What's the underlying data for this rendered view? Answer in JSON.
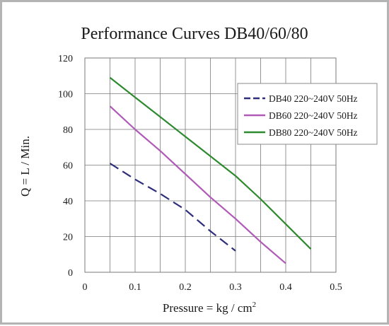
{
  "chart_data": {
    "type": "line",
    "title": "Performance  Curves  DB40/60/80",
    "xlabel": "Pressure = kg / cm",
    "xlabel_superscript": "2",
    "ylabel": "Q = L / Min.",
    "xlim": [
      0,
      0.5
    ],
    "ylim": [
      0,
      120
    ],
    "xticks": [
      0,
      0.1,
      0.2,
      0.3,
      0.4,
      0.5
    ],
    "xtick_labels": [
      "0",
      "0.1",
      "0.2",
      "0.3",
      "0.4",
      "0.5"
    ],
    "yticks": [
      0,
      20,
      40,
      60,
      80,
      100,
      120
    ],
    "ytick_labels": [
      "0",
      "20",
      "40",
      "60",
      "80",
      "100",
      "120"
    ],
    "x_minor_gridlines": [
      0.05,
      0.15,
      0.25,
      0.35,
      0.45
    ],
    "grid": true,
    "legend_position": "top-right",
    "series": [
      {
        "name": "DB40 220~240V 50Hz",
        "color": "#2e2e7a",
        "line_style": "dashed",
        "x": [
          0.05,
          0.1,
          0.15,
          0.2,
          0.25,
          0.3
        ],
        "y": [
          61,
          52,
          44,
          35,
          23,
          12
        ]
      },
      {
        "name": "DB60 220~240V 50Hz",
        "color": "#b05ab8",
        "line_style": "solid",
        "x": [
          0.05,
          0.1,
          0.15,
          0.2,
          0.25,
          0.3,
          0.35,
          0.4
        ],
        "y": [
          93,
          80,
          68,
          55,
          42,
          30,
          17,
          5
        ]
      },
      {
        "name": "DB80 220~240V 50Hz",
        "color": "#2e8a2e",
        "line_style": "solid",
        "x": [
          0.05,
          0.1,
          0.15,
          0.2,
          0.25,
          0.3,
          0.35,
          0.4,
          0.45
        ],
        "y": [
          109,
          98,
          87,
          76,
          65,
          54,
          41,
          27,
          13
        ]
      }
    ]
  }
}
